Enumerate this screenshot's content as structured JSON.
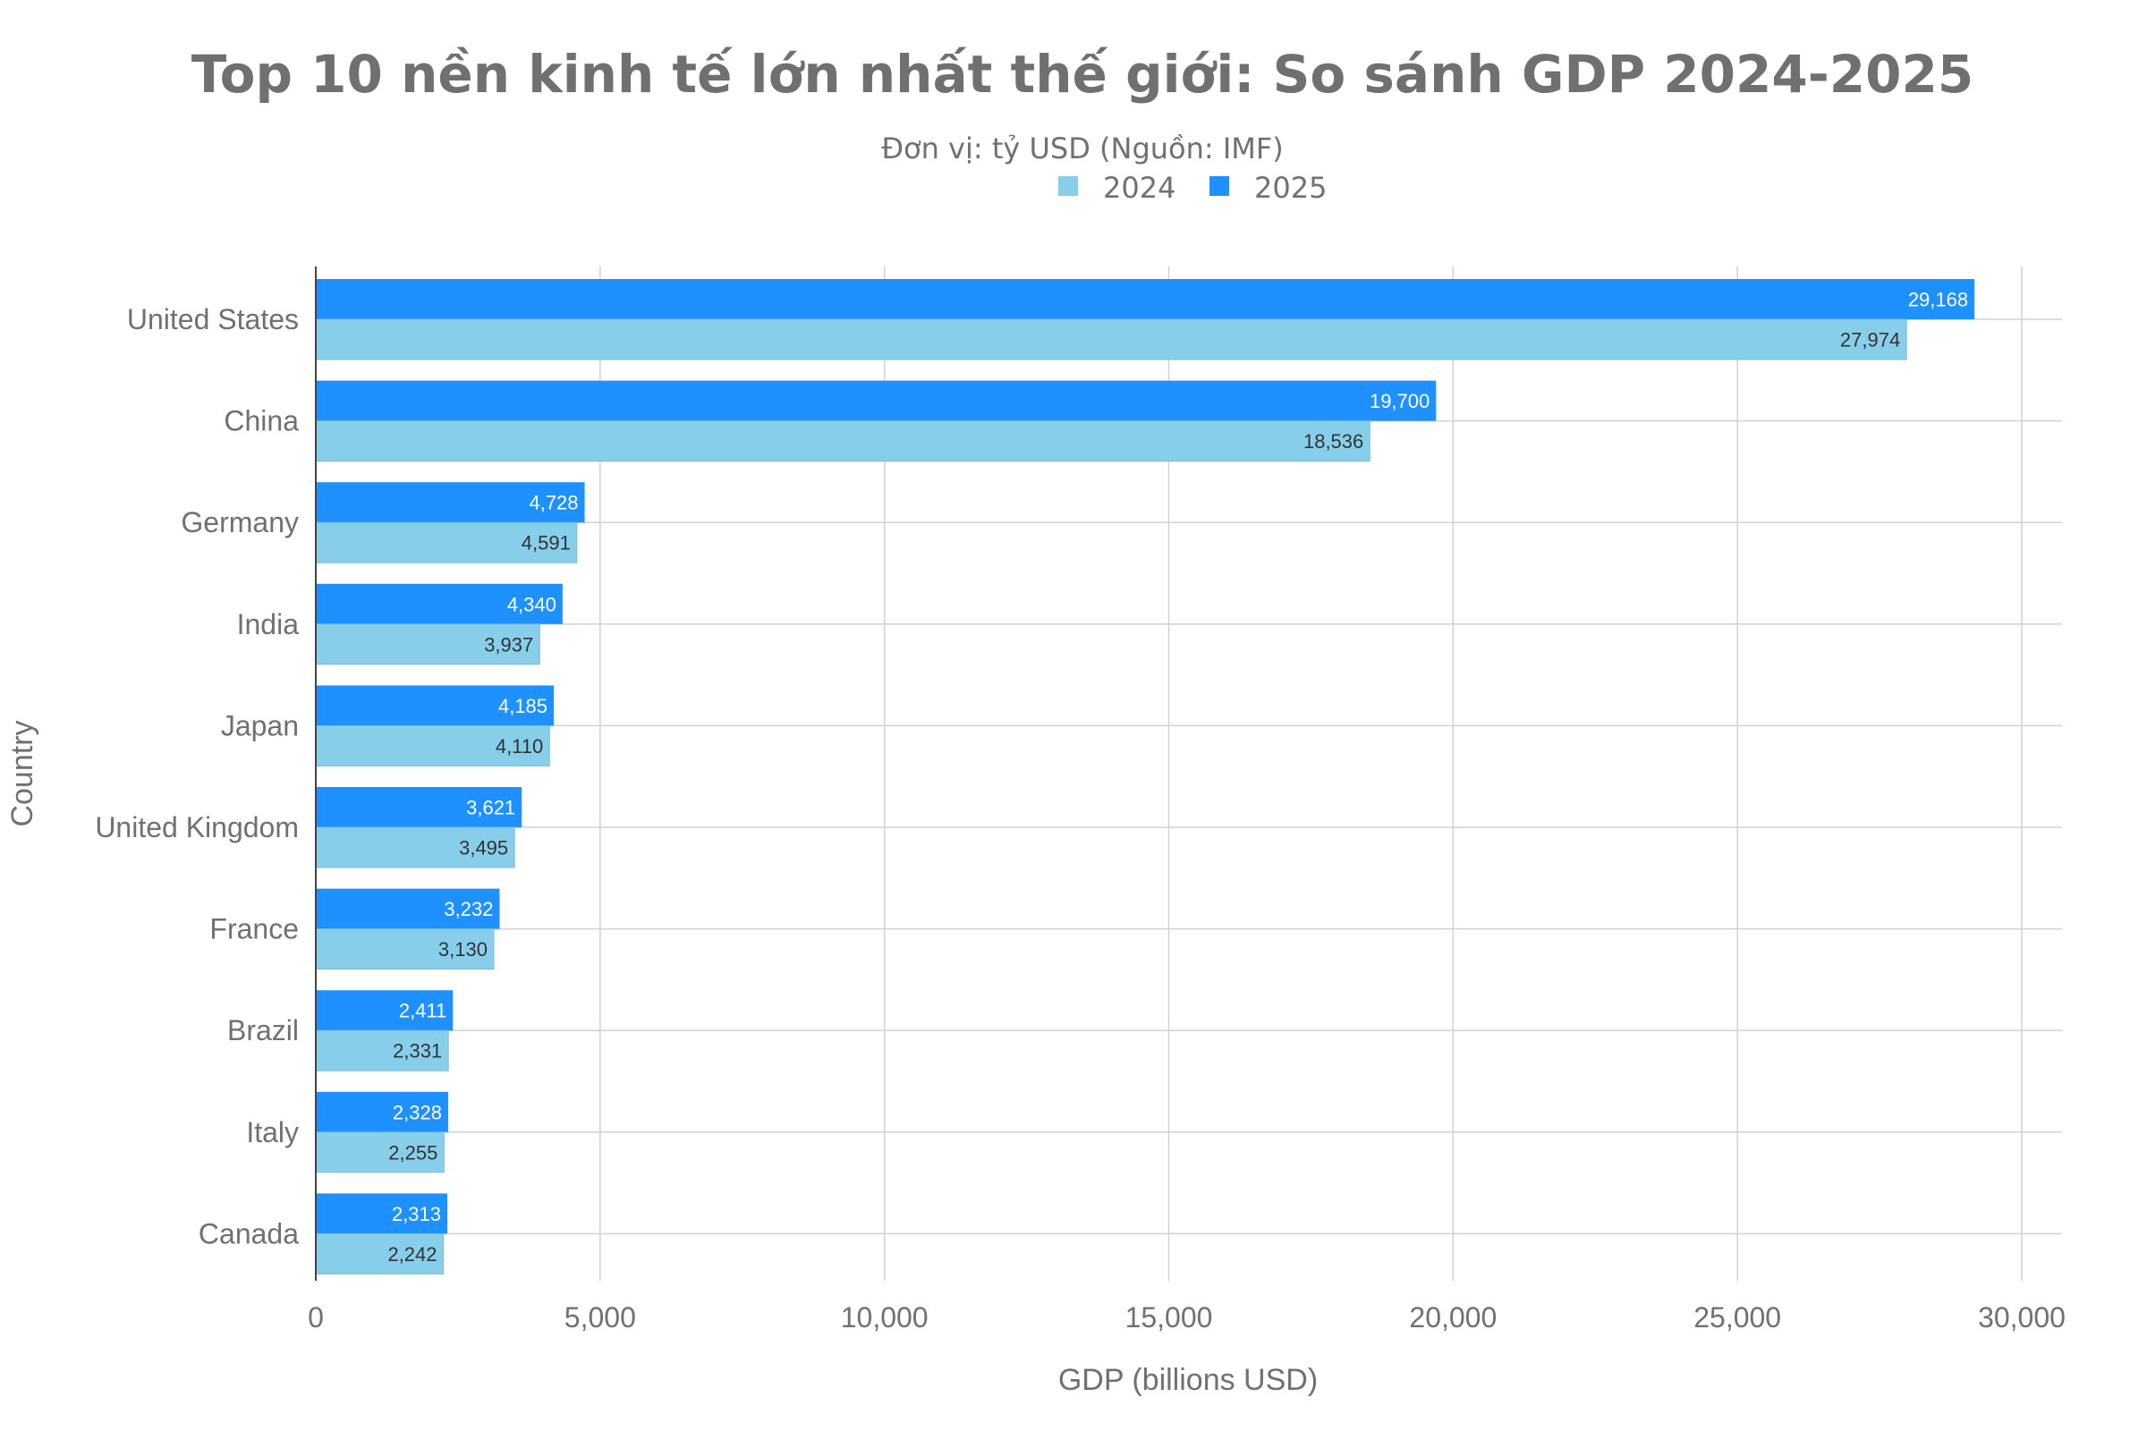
{
  "chart_data": {
    "type": "bar",
    "orientation": "horizontal",
    "title": "Top 10 nền kinh tế lớn nhất thế giới: So sánh GDP 2024-2025",
    "subtitle": "Đơn vị: tỷ USD (Nguồn: IMF)",
    "xlabel": "GDP (billions USD)",
    "ylabel": "Country",
    "xlim": [
      0,
      30700
    ],
    "xticks": [
      0,
      5000,
      10000,
      15000,
      20000,
      25000,
      30000
    ],
    "xtick_labels": [
      "0",
      "5,000",
      "10,000",
      "15,000",
      "20,000",
      "25,000",
      "30,000"
    ],
    "grid": true,
    "legend_position": "top-center",
    "categories": [
      "United States",
      "China",
      "Germany",
      "India",
      "Japan",
      "United Kingdom",
      "France",
      "Brazil",
      "Italy",
      "Canada"
    ],
    "series": [
      {
        "name": "2024",
        "color": "#87ceeb",
        "label_color": "#333333",
        "values": [
          27974,
          18536,
          4591,
          3937,
          4110,
          3495,
          3130,
          2331,
          2255,
          2242
        ],
        "labels": [
          "27,974",
          "18,536",
          "4,591",
          "3,937",
          "4,110",
          "3,495",
          "3,130",
          "2,331",
          "2,255",
          "2,242"
        ]
      },
      {
        "name": "2025",
        "color": "#1e90ff",
        "label_color": "#ffffff",
        "values": [
          29168,
          19700,
          4728,
          4340,
          4185,
          3621,
          3232,
          2411,
          2328,
          2313
        ],
        "labels": [
          "29,168",
          "19,700",
          "4,728",
          "4,340",
          "4,185",
          "3,621",
          "3,232",
          "2,411",
          "2,328",
          "2,313"
        ]
      }
    ]
  }
}
